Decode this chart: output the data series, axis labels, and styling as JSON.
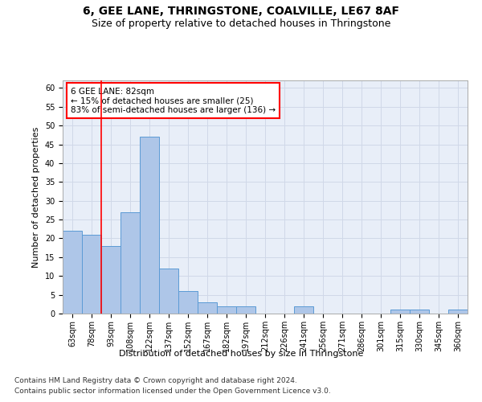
{
  "title_line1": "6, GEE LANE, THRINGSTONE, COALVILLE, LE67 8AF",
  "title_line2": "Size of property relative to detached houses in Thringstone",
  "xlabel": "Distribution of detached houses by size in Thringstone",
  "ylabel": "Number of detached properties",
  "bar_labels": [
    "63sqm",
    "78sqm",
    "93sqm",
    "108sqm",
    "122sqm",
    "137sqm",
    "152sqm",
    "167sqm",
    "182sqm",
    "197sqm",
    "212sqm",
    "226sqm",
    "241sqm",
    "256sqm",
    "271sqm",
    "286sqm",
    "301sqm",
    "315sqm",
    "330sqm",
    "345sqm",
    "360sqm"
  ],
  "bar_values": [
    22,
    21,
    18,
    27,
    47,
    12,
    6,
    3,
    2,
    2,
    0,
    0,
    2,
    0,
    0,
    0,
    0,
    1,
    1,
    0,
    1
  ],
  "bar_color": "#aec6e8",
  "bar_edge_color": "#5b9bd5",
  "annotation_text": "6 GEE LANE: 82sqm\n← 15% of detached houses are smaller (25)\n83% of semi-detached houses are larger (136) →",
  "annotation_box_color": "white",
  "annotation_box_edge_color": "red",
  "vline_color": "red",
  "vline_x": 1.5,
  "ylim": [
    0,
    62
  ],
  "yticks": [
    0,
    5,
    10,
    15,
    20,
    25,
    30,
    35,
    40,
    45,
    50,
    55,
    60
  ],
  "grid_color": "#d0d8e8",
  "bg_color": "#e8eef8",
  "footer_line1": "Contains HM Land Registry data © Crown copyright and database right 2024.",
  "footer_line2": "Contains public sector information licensed under the Open Government Licence v3.0.",
  "title_fontsize": 10,
  "subtitle_fontsize": 9,
  "xlabel_fontsize": 8,
  "ylabel_fontsize": 8,
  "tick_fontsize": 7,
  "footer_fontsize": 6.5,
  "annot_fontsize": 7.5
}
